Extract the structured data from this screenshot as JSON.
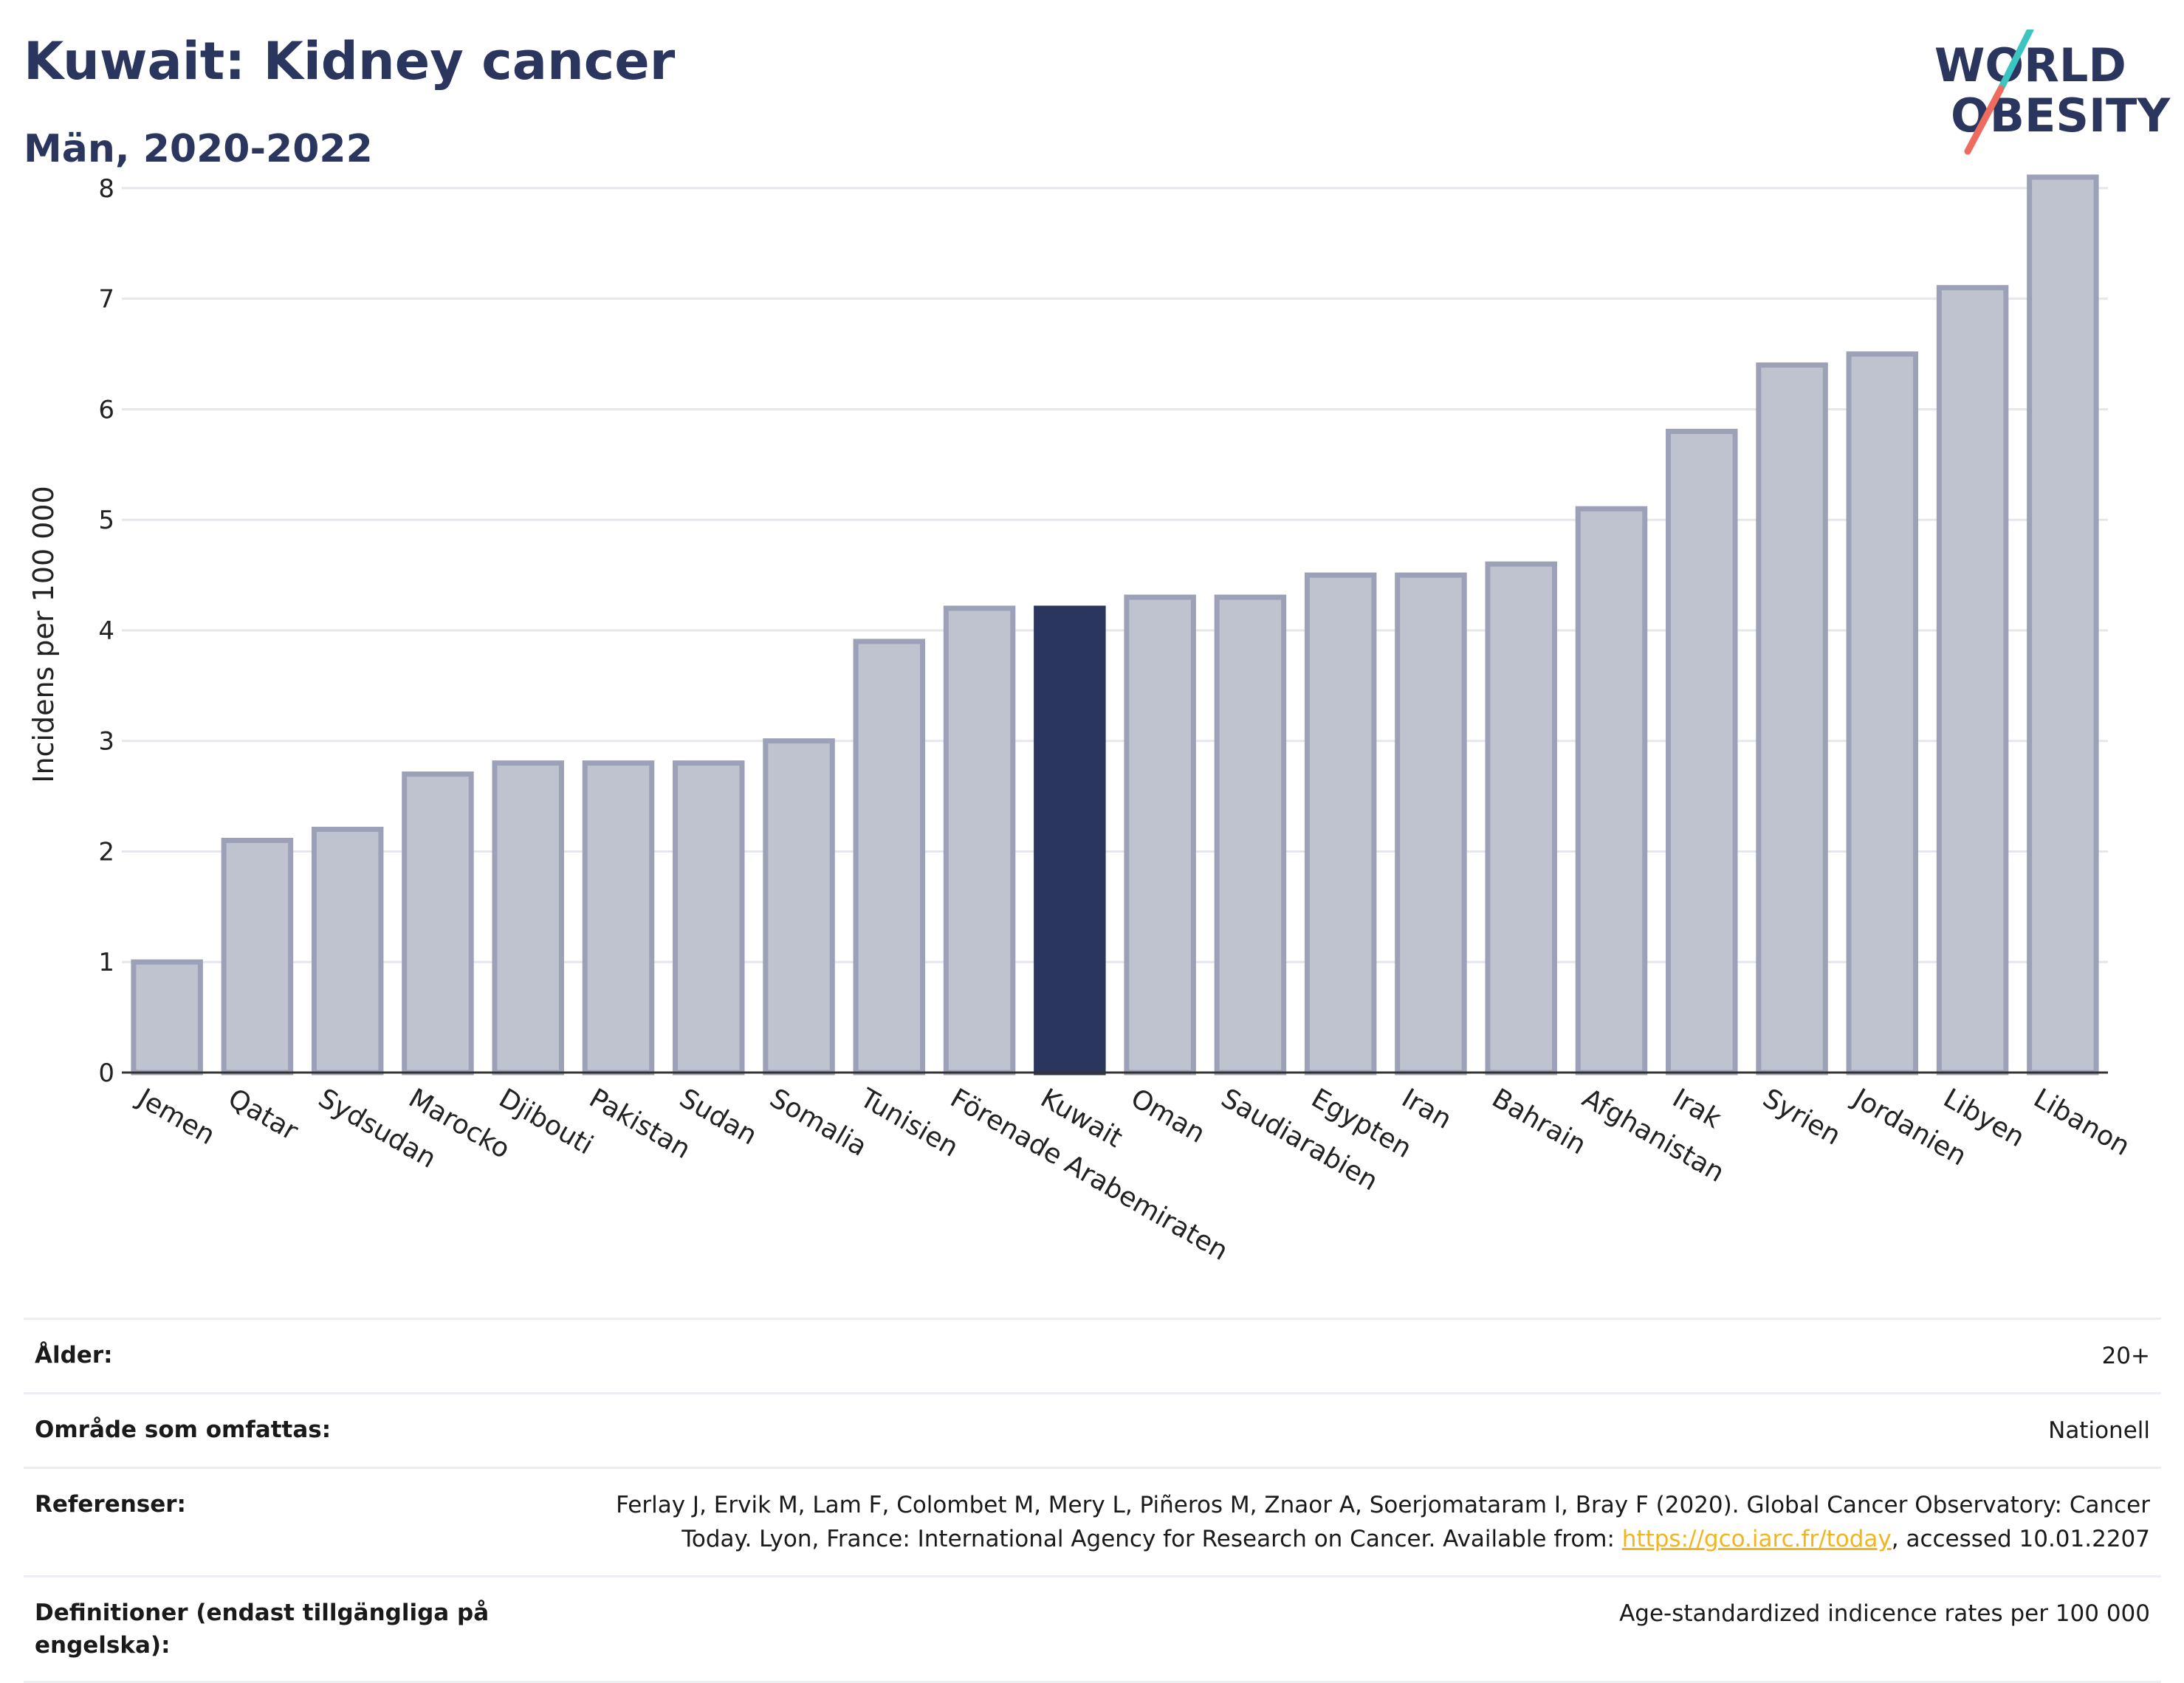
{
  "header": {
    "title": "Kuwait: Kidney cancer",
    "subtitle": "Män, 2020-2022"
  },
  "logo": {
    "line1": "WORLD",
    "line2": "OBESITY"
  },
  "chart_data": {
    "type": "bar",
    "ylabel": "Incidens per 100 000",
    "ylim": [
      0,
      8.3
    ],
    "yticks": [
      0,
      1,
      2,
      3,
      4,
      5,
      6,
      7,
      8
    ],
    "grid": true,
    "highlight_index": 10,
    "colors": {
      "bar": "#bfc2cf",
      "bar_border": "#9da1b8",
      "highlight": "#2b365f",
      "grid": "#e6e7ed",
      "axis": "#333333"
    },
    "categories": [
      "Jemen",
      "Qatar",
      "Sydsudan",
      "Marocko",
      "Djibouti",
      "Pakistan",
      "Sudan",
      "Somalia",
      "Tunisien",
      "Förenade Arabemiraten",
      "Kuwait",
      "Oman",
      "Saudiarabien",
      "Egypten",
      "Iran",
      "Bahrain",
      "Afghanistan",
      "Irak",
      "Syrien",
      "Jordanien",
      "Libyen",
      "Libanon"
    ],
    "values": [
      1.0,
      2.1,
      2.2,
      2.7,
      2.8,
      2.8,
      2.8,
      3.0,
      3.9,
      4.2,
      4.2,
      4.3,
      4.3,
      4.5,
      4.5,
      4.6,
      5.1,
      5.8,
      6.4,
      6.5,
      7.1,
      8.1
    ]
  },
  "meta": {
    "age_label": "Ålder:",
    "age_value": "20+",
    "area_label": "Område som omfattas:",
    "area_value": "Nationell",
    "ref_label": "Referenser:",
    "ref_value_line1": "Ferlay J, Ervik M, Lam F, Colombet M, Mery L, Piñeros M, Znaor A, Soerjomataram I, Bray F (2020). Global Cancer Observatory: Cancer",
    "ref_value_line2_pre": "Today. Lyon, France: International Agency for Research on Cancer. Available from: ",
    "ref_link": "https://gco.iarc.fr/today",
    "ref_value_line2_post": ", accessed 10.01.2207",
    "def_label": "Definitioner (endast tillgängliga på engelska):",
    "def_value": "Age-standardized indicence rates per 100 000"
  }
}
